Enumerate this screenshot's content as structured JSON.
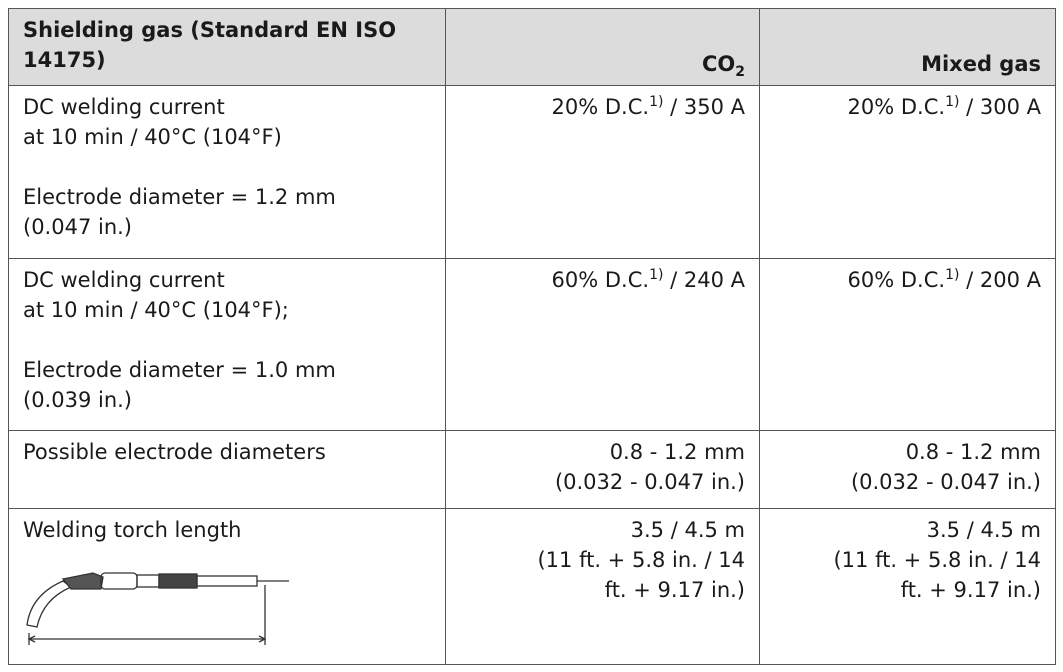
{
  "table": {
    "header": [
      {
        "text": "Shielding gas (Standard EN ISO 14175)"
      },
      {
        "text": "CO",
        "sub": "2"
      },
      {
        "text": "Mixed gas"
      }
    ],
    "rows": [
      {
        "label": [
          [
            "DC welding current",
            "at 10 min / 40°C (104°F)"
          ],
          [
            "Electrode diameter = 1.2 mm",
            "(0.047 in.)"
          ]
        ],
        "co2": {
          "text": "20% D.C.",
          "sup": "1)",
          "after": " / 350 A"
        },
        "mixed": {
          "text": "20% D.C.",
          "sup": "1)",
          "after": " / 300 A"
        }
      },
      {
        "label": [
          [
            "DC welding current",
            "at 10 min / 40°C (104°F);"
          ],
          [
            "Electrode diameter = 1.0 mm",
            "(0.039 in.)"
          ]
        ],
        "co2": {
          "text": "60% D.C.",
          "sup": "1)",
          "after": " / 240 A"
        },
        "mixed": {
          "text": "60% D.C.",
          "sup": "1)",
          "after": " / 200 A"
        }
      },
      {
        "label": [
          [
            "Possible electrode diameters"
          ]
        ],
        "co2": [
          "0.8 - 1.2 mm",
          "(0.032 - 0.047 in.)"
        ],
        "mixed": [
          "0.8 - 1.2 mm",
          "(0.032 - 0.047 in.)"
        ]
      },
      {
        "label": [
          [
            "Welding torch length"
          ]
        ],
        "co2": [
          "3.5 / 4.5 m",
          "(11 ft. + 5.8 in. / 14",
          "ft. + 9.17 in.)"
        ],
        "mixed": [
          "3.5 / 4.5 m",
          "(11 ft. + 5.8 in. / 14",
          "ft. + 9.17 in.)"
        ]
      }
    ]
  }
}
